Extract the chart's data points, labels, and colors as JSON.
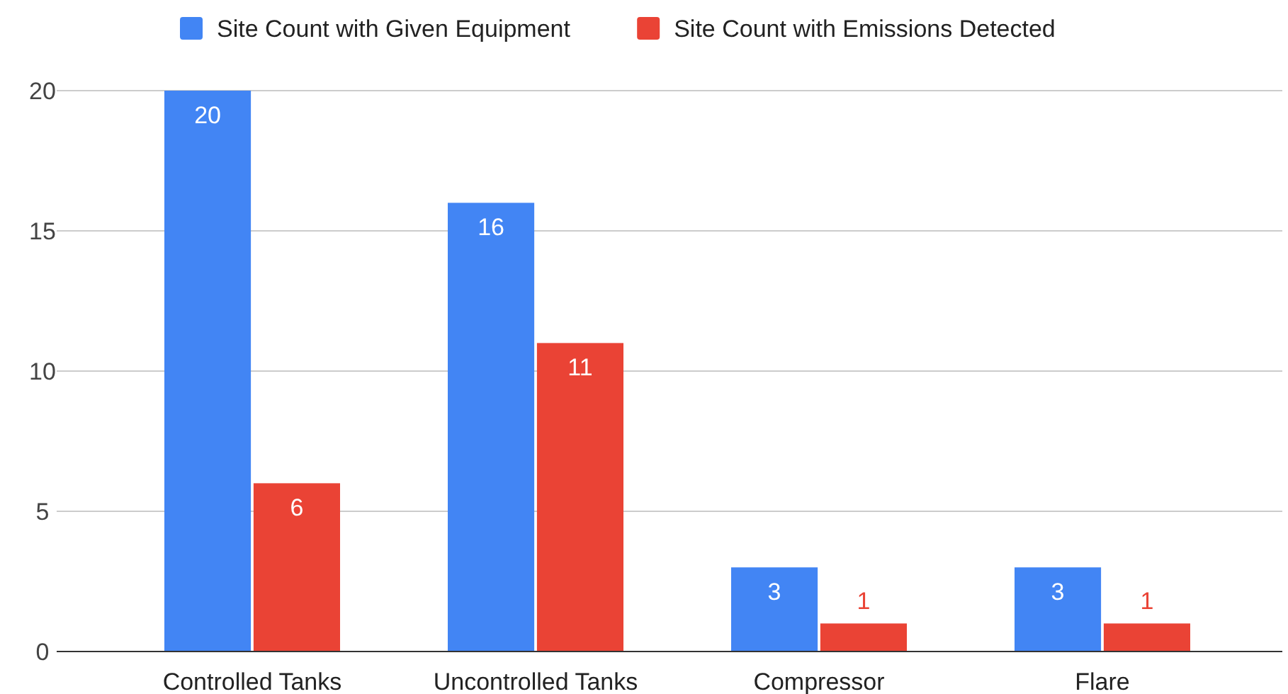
{
  "chart_data": {
    "type": "bar",
    "categories": [
      "Controlled Tanks",
      "Uncontrolled Tanks",
      "Compressor",
      "Flare"
    ],
    "series": [
      {
        "name": "Site Count with Given Equipment",
        "color": "#4285f4",
        "values": [
          20,
          16,
          3,
          3
        ]
      },
      {
        "name": "Site Count with Emissions Detected",
        "color": "#ea4335",
        "values": [
          6,
          11,
          1,
          1
        ]
      }
    ],
    "ylim": [
      0,
      20
    ],
    "yticks": [
      0,
      5,
      10,
      15,
      20
    ],
    "grid": "y",
    "legend": "top",
    "data_labels": true
  }
}
